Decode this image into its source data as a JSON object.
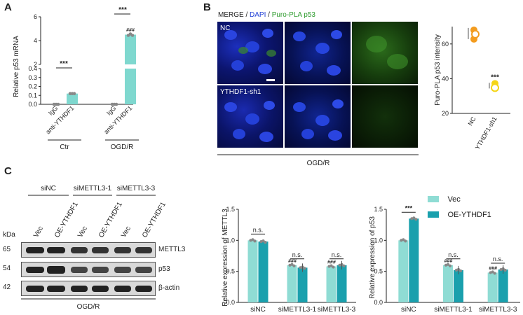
{
  "panels": {
    "a": "A",
    "b": "B",
    "c": "C"
  },
  "panelA": {
    "ylabel": "Relative p53 mRNA",
    "yticks_top": [
      "6",
      "4",
      "2"
    ],
    "yticks_bottom": [
      "0.4",
      "0.3",
      "0.2",
      "0.1",
      "0.0"
    ],
    "categories": [
      "IgG",
      "anti-YTHDF1",
      "IgG",
      "anti-YTHDF1"
    ],
    "groups": [
      "Ctr",
      "OGD/R"
    ],
    "sig": [
      "***",
      "***",
      "###"
    ],
    "color": "#7fd8cf"
  },
  "panelB": {
    "header": {
      "merge": "MERGE",
      "sep1": " / ",
      "dapi": "DAPI",
      "sep2": " / ",
      "pla": "Puro-PLA p53"
    },
    "rows": [
      "NC",
      "YTHDF1-sh1"
    ],
    "condition": "OGD/R",
    "dapi_color": "#1f3fd6",
    "pla_color": "#2e9b2e"
  },
  "panelB_chart": {
    "ylabel": "Puro-PLA p53 intensity",
    "yticks": [
      "60",
      "40",
      "20"
    ],
    "categories": [
      "NC",
      "YTHDF1-sh1"
    ],
    "sig": "***",
    "colors": [
      "#f39c1f",
      "#f5d516"
    ]
  },
  "panelC_blot": {
    "groups": [
      "siNC",
      "siMETTL3-1",
      "siMETTL3-3"
    ],
    "lanes": [
      "Vec",
      "OE-YTHDF1",
      "Vec",
      "OE-YTHDF1",
      "Vec",
      "OE-YTHDF1"
    ],
    "kda_label": "kDa",
    "markers": [
      "65",
      "54",
      "42"
    ],
    "proteins": [
      "METTL3",
      "p53",
      "β-actin"
    ],
    "condition": "OGD/R"
  },
  "legend": {
    "vec": "Vec",
    "oe": "OE-YTHDF1",
    "vec_color": "#8fdcd4",
    "oe_color": "#1aa0ad"
  },
  "chart_data": [
    {
      "type": "bar",
      "ylabel": "Relative p53 mRNA",
      "categories": [
        "IgG",
        "anti-YTHDF1",
        "IgG",
        "anti-YTHDF1"
      ],
      "values": [
        0.0,
        0.12,
        0.0,
        4.5
      ],
      "ylim": [
        0,
        6
      ],
      "group_labels": [
        "Ctr",
        "OGD/R"
      ]
    },
    {
      "type": "scatter",
      "ylabel": "Puro-PLA p53 intensity",
      "categories": [
        "NC",
        "YTHDF1-sh1"
      ],
      "values": [
        66,
        36
      ],
      "ylim": [
        20,
        70
      ]
    },
    {
      "type": "bar",
      "ylabel": "Relative expression of METTL3",
      "categories": [
        "siNC",
        "siMETTL3-1",
        "siMETTL3-3"
      ],
      "series": [
        {
          "name": "Vec",
          "values": [
            1.0,
            0.6,
            0.58
          ]
        },
        {
          "name": "OE-YTHDF1",
          "values": [
            0.98,
            0.56,
            0.6
          ]
        }
      ],
      "yticks": [
        "0.0",
        "0.5",
        "1.0",
        "1.5"
      ],
      "ylim": [
        0,
        1.5
      ],
      "sig": [
        "n.s.",
        "n.s.",
        "n.s."
      ],
      "hash": [
        "###",
        "###"
      ]
    },
    {
      "type": "bar",
      "ylabel": "Relative expression of p53",
      "categories": [
        "siNC",
        "siMETTL3-1",
        "siMETTL3-3"
      ],
      "series": [
        {
          "name": "Vec",
          "values": [
            1.0,
            0.6,
            0.48
          ]
        },
        {
          "name": "OE-YTHDF1",
          "values": [
            1.35,
            0.52,
            0.53
          ]
        }
      ],
      "yticks": [
        "0.0",
        "0.5",
        "1.0",
        "1.5"
      ],
      "ylim": [
        0,
        1.6
      ],
      "sig": [
        "***",
        "n.s.",
        "n.s."
      ],
      "hash": [
        "###",
        "###"
      ]
    }
  ]
}
